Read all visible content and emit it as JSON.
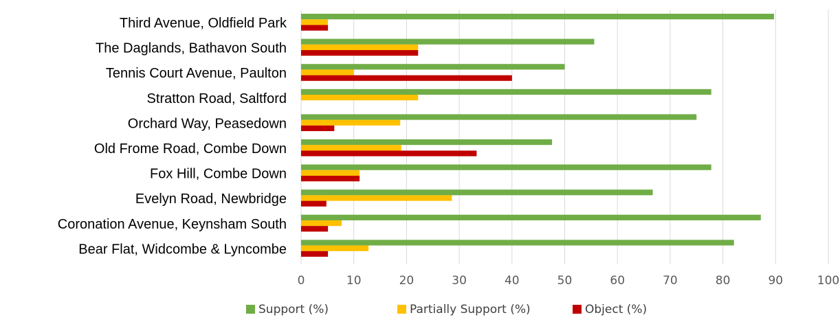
{
  "chart_data": {
    "type": "bar",
    "orientation": "horizontal",
    "categories": [
      "Third Avenue, Oldfield Park",
      "The Daglands, Bathavon South",
      "Tennis Court Avenue, Paulton",
      "Stratton Road, Saltford",
      "Orchard Way, Peasedown",
      "Old Frome Road, Combe Down",
      "Fox Hill, Combe Down",
      "Evelyn Road, Newbridge",
      "Coronation Avenue, Keynsham South",
      "Bear Flat, Widcombe & Lyncombe"
    ],
    "series": [
      {
        "name": "Support (%)",
        "color": "#70ad47",
        "values": [
          89.7,
          55.6,
          50.0,
          77.8,
          75.0,
          47.6,
          77.8,
          66.7,
          87.2,
          82.1
        ]
      },
      {
        "name": "Partially Support (%)",
        "color": "#ffc000",
        "values": [
          5.1,
          22.2,
          10.0,
          22.2,
          18.8,
          19.0,
          11.1,
          28.6,
          7.7,
          12.8
        ]
      },
      {
        "name": "Object (%)",
        "color": "#c00000",
        "values": [
          5.1,
          22.2,
          40.0,
          0,
          6.3,
          33.3,
          11.1,
          4.8,
          5.1,
          5.1
        ]
      }
    ],
    "xlim": [
      0,
      100
    ],
    "xticks": [
      "0",
      "10",
      "20",
      "30",
      "40",
      "50",
      "60",
      "70",
      "80",
      "90",
      "100"
    ],
    "grid": true,
    "legend_position": "bottom"
  }
}
